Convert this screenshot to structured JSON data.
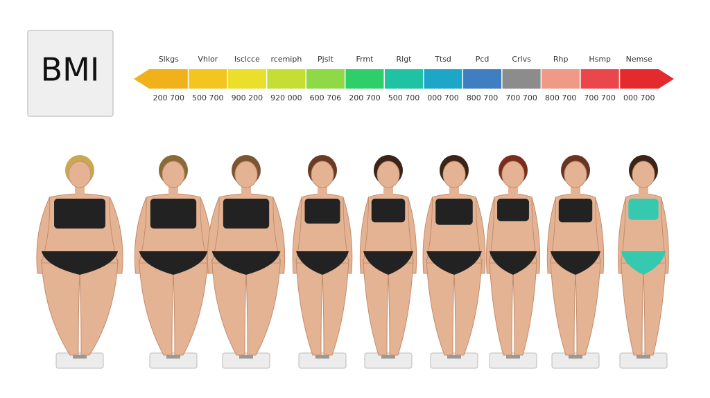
{
  "header": {
    "title": "BMI"
  },
  "scale": {
    "segments": [
      {
        "label": "Slkgs",
        "range": "200 700",
        "color": "#f0b11a"
      },
      {
        "label": "Vhlor",
        "range": "500 700",
        "color": "#f3c51f"
      },
      {
        "label": "Isclcce",
        "range": "900 200",
        "color": "#eadf2a"
      },
      {
        "label": "rcemiph",
        "range": "920 000",
        "color": "#c4de35"
      },
      {
        "label": "Pjslt",
        "range": "600 706",
        "color": "#8fd946"
      },
      {
        "label": "Frmt",
        "range": "200 700",
        "color": "#2ecf6a"
      },
      {
        "label": "Rlgt",
        "range": "500 700",
        "color": "#1fc2a2"
      },
      {
        "label": "Ttsd",
        "range": "000 700",
        "color": "#1ea6c9"
      },
      {
        "label": "Pcd",
        "range": "800 700",
        "color": "#3f7fc1"
      },
      {
        "label": "Crlvs",
        "range": "700 700",
        "color": "#8c8c8c"
      },
      {
        "label": "Rhp",
        "range": "800 700",
        "color": "#ef9a86"
      },
      {
        "label": "Hsmp",
        "range": "700 700",
        "color": "#e9474b"
      },
      {
        "label": "Nemse",
        "range": "000 700",
        "color": "#e52a2e"
      }
    ]
  }
}
